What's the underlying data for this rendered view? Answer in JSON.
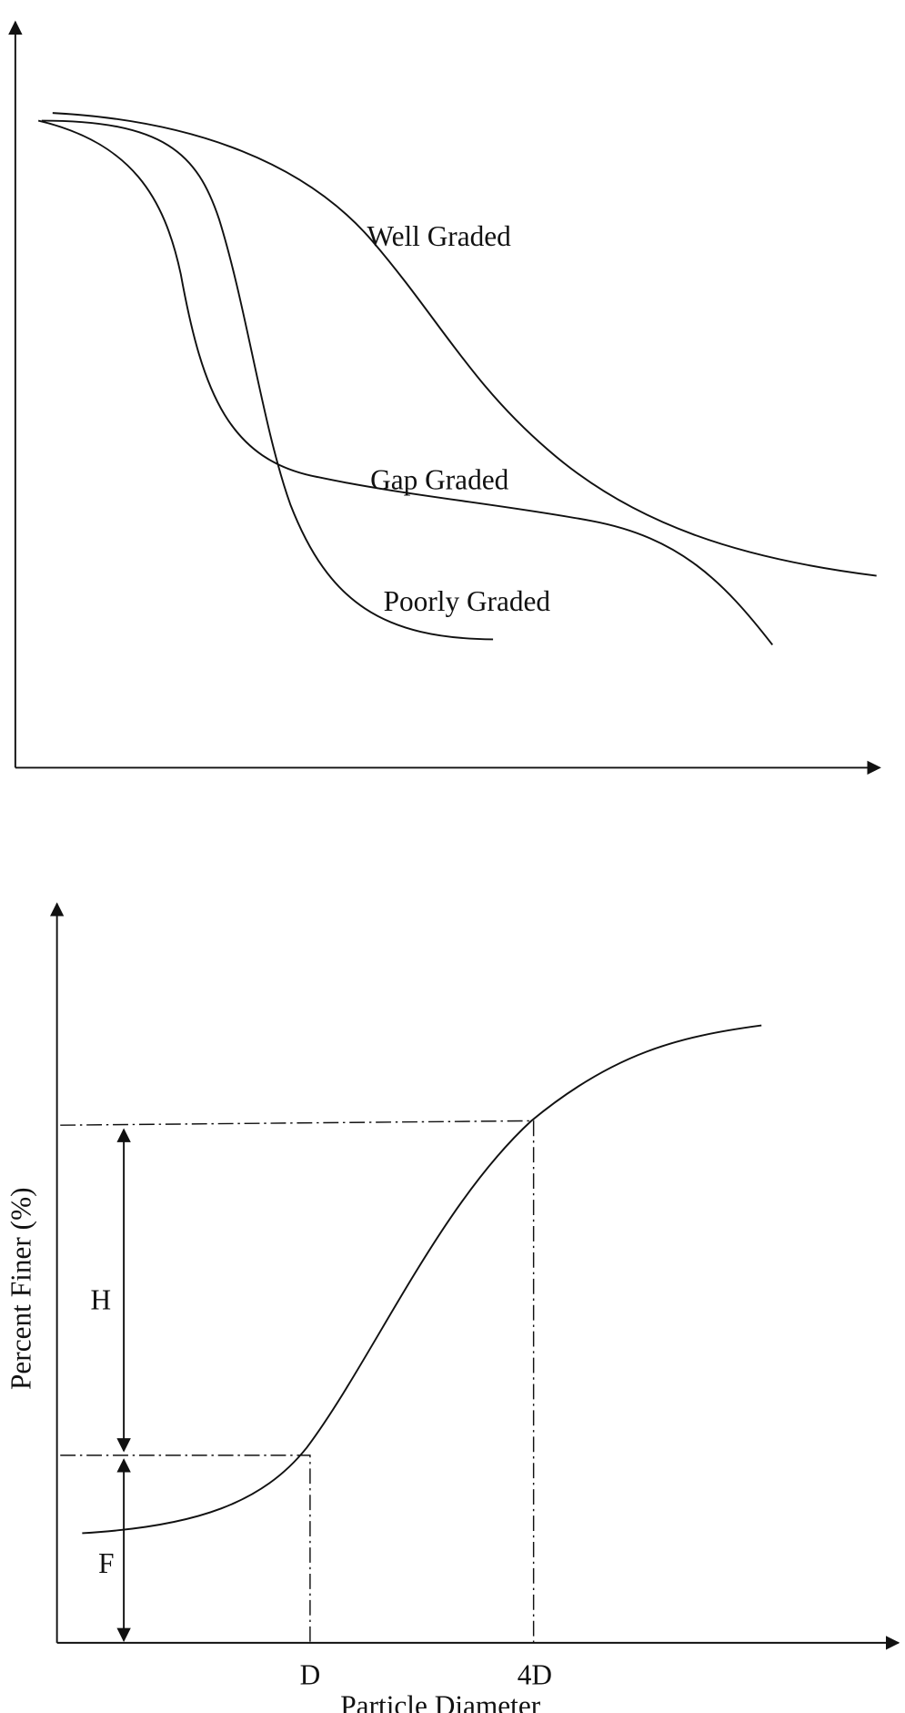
{
  "top_diagram": {
    "curves": [
      {
        "label": "Well Graded"
      },
      {
        "label": "Gap Graded"
      },
      {
        "label": "Poorly Graded"
      }
    ]
  },
  "bottom_diagram": {
    "y_axis_label": "Percent Finer (%)",
    "x_axis_label": "Particle Diameter",
    "x_markers": [
      "D",
      "4D"
    ],
    "dimension_labels": [
      "H",
      "F"
    ]
  }
}
